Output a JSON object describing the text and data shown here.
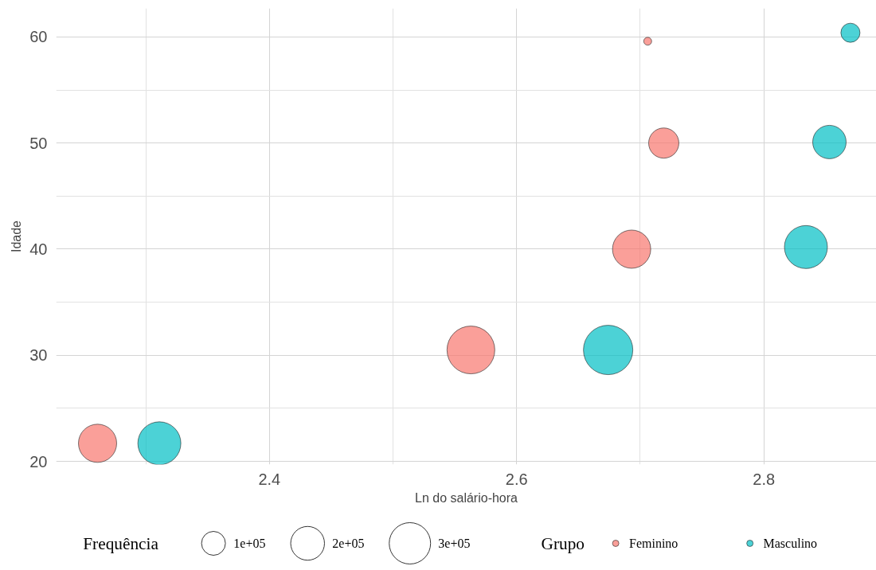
{
  "chart_data": {
    "type": "bubble",
    "xlabel": "Ln do salário-hora",
    "ylabel": "Idade",
    "legend_title": "Grupo",
    "annotations": [
      "Frequência"
    ],
    "series": [
      {
        "name": "Feminino",
        "color": "#f8766d",
        "x": [
          2.261,
          2.563,
          2.693,
          2.719,
          2.706
        ],
        "values": [
          21.7,
          30.5,
          40.0,
          50.0,
          59.6
        ],
        "sizes": [
          256000,
          400000,
          256000,
          160000,
          11000
        ]
      },
      {
        "name": "Masculino",
        "color": "#00bfc4",
        "x": [
          2.311,
          2.674,
          2.834,
          2.853,
          2.87
        ],
        "values": [
          21.7,
          30.5,
          40.2,
          50.1,
          60.4
        ],
        "sizes": [
          324000,
          427000,
          324000,
          196000,
          64000
        ]
      }
    ],
    "size_legend": [
      {
        "value": 100000,
        "label": "1e+05"
      },
      {
        "value": 200000,
        "label": "2e+05"
      },
      {
        "value": 300000,
        "label": "3e+05"
      }
    ],
    "xlim": [
      2.2275,
      2.891
    ],
    "ylim": [
      19.7,
      62.7
    ],
    "xticks": [
      2.4,
      2.6,
      2.8
    ],
    "yticks": [
      20,
      30,
      40,
      50,
      60
    ],
    "grid": true,
    "legend": "bottom"
  }
}
